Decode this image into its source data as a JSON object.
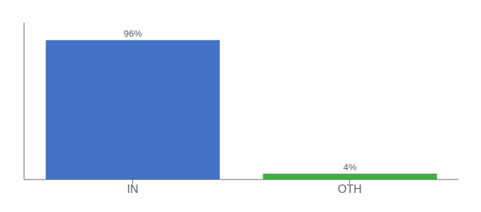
{
  "chart_data": {
    "type": "bar",
    "categories": [
      "IN",
      "OTH"
    ],
    "values": [
      96,
      4
    ],
    "value_labels": [
      "96%",
      "4%"
    ],
    "colors": [
      "#4472c4",
      "#3cb043"
    ],
    "ylim": [
      0,
      108
    ],
    "yticks": [],
    "data_labels": true,
    "tick_labels": "x",
    "grid": false
  }
}
